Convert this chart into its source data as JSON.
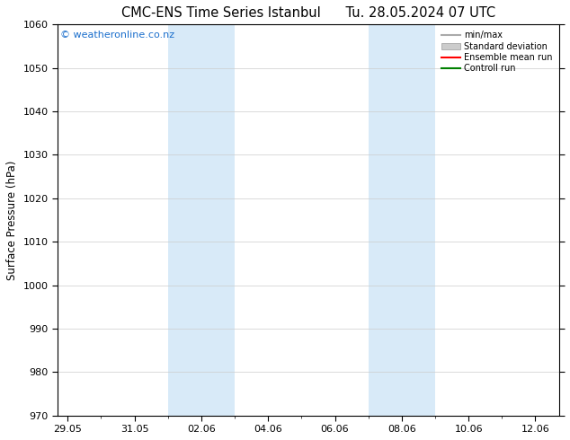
{
  "title": "CMC-ENS Time Series Istanbul",
  "title2": "Tu. 28.05.2024 07 UTC",
  "xlabel": "",
  "ylabel": "Surface Pressure (hPa)",
  "ylim": [
    970,
    1060
  ],
  "yticks": [
    970,
    980,
    990,
    1000,
    1010,
    1020,
    1030,
    1040,
    1050,
    1060
  ],
  "x_tick_labels": [
    "29.05",
    "31.05",
    "02.06",
    "04.06",
    "06.06",
    "08.06",
    "10.06",
    "12.06"
  ],
  "x_tick_positions": [
    0,
    2,
    4,
    6,
    8,
    10,
    12,
    14
  ],
  "x_lim": [
    -0.3,
    14.7
  ],
  "shaded_regions": [
    {
      "x_start": 3.0,
      "x_end": 5.0,
      "color": "#d8eaf8"
    },
    {
      "x_start": 9.0,
      "x_end": 11.0,
      "color": "#d8eaf8"
    }
  ],
  "watermark": "© weatheronline.co.nz",
  "watermark_color": "#1a6ecc",
  "background_color": "#ffffff",
  "legend_items": [
    {
      "label": "min/max",
      "color": "#aaaaaa",
      "style": "line"
    },
    {
      "label": "Standard deviation",
      "color": "#cccccc",
      "style": "rect"
    },
    {
      "label": "Ensemble mean run",
      "color": "red",
      "style": "line"
    },
    {
      "label": "Controll run",
      "color": "green",
      "style": "line"
    }
  ],
  "title_fontsize": 10.5,
  "tick_fontsize": 8,
  "ylabel_fontsize": 8.5,
  "watermark_fontsize": 8
}
